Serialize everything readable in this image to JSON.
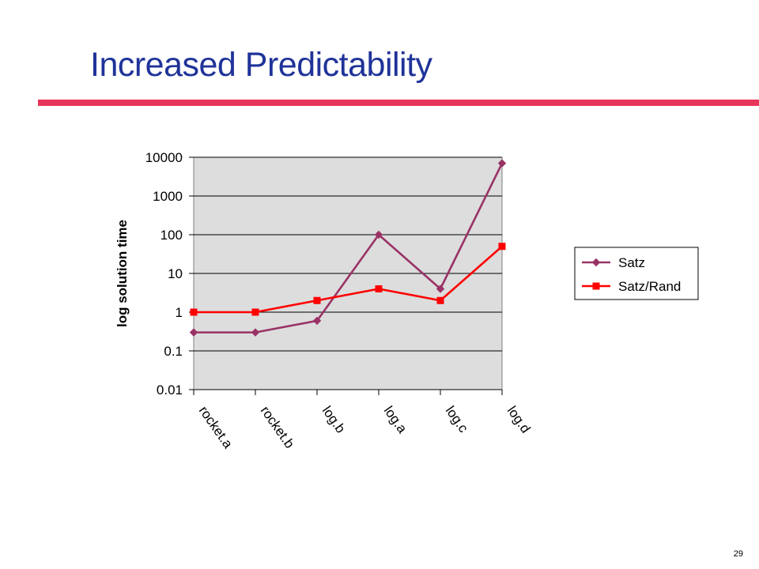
{
  "slide": {
    "title": "Increased Predictability",
    "title_color": "#1f3399",
    "rule_color": "#e8355a",
    "page_number": "29"
  },
  "chart_data": {
    "type": "line",
    "scale": "log",
    "categories": [
      "rocket.a",
      "rocket.b",
      "log.b",
      "log.a",
      "log.c",
      "log.d"
    ],
    "series": [
      {
        "name": "Satz",
        "marker": "diamond",
        "color": "#993366",
        "values": [
          0.3,
          0.3,
          0.6,
          100,
          4,
          7000
        ]
      },
      {
        "name": "Satz/Rand",
        "marker": "square",
        "color": "#ff0000",
        "values": [
          1,
          1,
          2,
          4,
          2,
          50
        ]
      }
    ],
    "ylabel": "log solution time",
    "xlabel": "",
    "yticks": [
      "0.01",
      "0.1",
      "1",
      "10",
      "100",
      "1000",
      "10000"
    ],
    "ylim": [
      0.01,
      10000
    ],
    "grid": true,
    "plot_background": "#dddddd",
    "legend_position": "right"
  }
}
